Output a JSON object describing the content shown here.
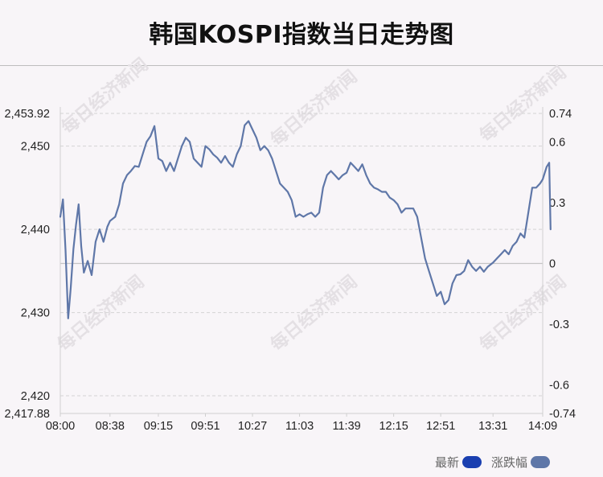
{
  "title": "韩国KOSPI指数当日走势图",
  "watermark_text": "每日经济新闻",
  "legend": [
    {
      "label": "最新",
      "color": "#1a3fb0"
    },
    {
      "label": "涨跌幅",
      "color": "#5f77a8"
    }
  ],
  "chart_data": {
    "type": "line",
    "line_color": "#5f77a8",
    "x_ticks": [
      "08:00",
      "08:38",
      "09:15",
      "09:51",
      "10:27",
      "11:03",
      "11:39",
      "12:15",
      "12:51",
      "13:31",
      "14:09"
    ],
    "x_range": [
      "08:00",
      "14:09"
    ],
    "y_left_ticks": [
      "2,453.92",
      "2,450",
      "2,440",
      "2,430",
      "2,420",
      "2,417.88"
    ],
    "y_left_range": [
      2417.88,
      2453.92
    ],
    "y_right_ticks": [
      "0.74",
      "0.6",
      "0.3",
      "0",
      "-0.3",
      "-0.6",
      "-0.74"
    ],
    "y_right_range": [
      -0.74,
      0.74
    ],
    "baseline": 2435.9,
    "grid": true,
    "series": [
      {
        "values": [
          [
            "08:00",
            2441.5
          ],
          [
            "08:02",
            2443.6
          ],
          [
            "08:04",
            2437.5
          ],
          [
            "08:06",
            2429.3
          ],
          [
            "08:08",
            2433.0
          ],
          [
            "08:10",
            2437.6
          ],
          [
            "08:12",
            2440.5
          ],
          [
            "08:14",
            2443.0
          ],
          [
            "08:16",
            2438.0
          ],
          [
            "08:18",
            2434.8
          ],
          [
            "08:21",
            2436.2
          ],
          [
            "08:24",
            2434.5
          ],
          [
            "08:27",
            2438.5
          ],
          [
            "08:30",
            2440.0
          ],
          [
            "08:33",
            2438.5
          ],
          [
            "08:36",
            2440.3
          ],
          [
            "08:38",
            2441.0
          ],
          [
            "08:42",
            2441.5
          ],
          [
            "08:45",
            2443.0
          ],
          [
            "08:48",
            2445.5
          ],
          [
            "08:51",
            2446.5
          ],
          [
            "08:54",
            2447.0
          ],
          [
            "08:57",
            2447.6
          ],
          [
            "09:00",
            2447.5
          ],
          [
            "09:03",
            2449.0
          ],
          [
            "09:06",
            2450.5
          ],
          [
            "09:09",
            2451.2
          ],
          [
            "09:12",
            2452.4
          ],
          [
            "09:15",
            2448.5
          ],
          [
            "09:18",
            2448.2
          ],
          [
            "09:21",
            2447.0
          ],
          [
            "09:24",
            2448.0
          ],
          [
            "09:27",
            2447.0
          ],
          [
            "09:30",
            2448.5
          ],
          [
            "09:33",
            2450.0
          ],
          [
            "09:36",
            2451.0
          ],
          [
            "09:39",
            2450.5
          ],
          [
            "09:42",
            2448.5
          ],
          [
            "09:45",
            2448.0
          ],
          [
            "09:48",
            2447.5
          ],
          [
            "09:51",
            2450.0
          ],
          [
            "09:54",
            2449.6
          ],
          [
            "09:57",
            2449.0
          ],
          [
            "10:00",
            2448.6
          ],
          [
            "10:03",
            2448.0
          ],
          [
            "10:06",
            2448.8
          ],
          [
            "10:09",
            2448.0
          ],
          [
            "10:12",
            2447.5
          ],
          [
            "10:15",
            2449.0
          ],
          [
            "10:18",
            2450.0
          ],
          [
            "10:21",
            2452.5
          ],
          [
            "10:24",
            2453.0
          ],
          [
            "10:27",
            2452.0
          ],
          [
            "10:30",
            2451.0
          ],
          [
            "10:33",
            2449.5
          ],
          [
            "10:36",
            2450.0
          ],
          [
            "10:39",
            2449.5
          ],
          [
            "10:42",
            2448.5
          ],
          [
            "10:45",
            2447.0
          ],
          [
            "10:48",
            2445.5
          ],
          [
            "10:51",
            2445.0
          ],
          [
            "10:54",
            2444.5
          ],
          [
            "10:57",
            2443.5
          ],
          [
            "11:00",
            2441.5
          ],
          [
            "11:03",
            2441.8
          ],
          [
            "11:06",
            2441.5
          ],
          [
            "11:09",
            2441.8
          ],
          [
            "11:12",
            2442.0
          ],
          [
            "11:15",
            2441.5
          ],
          [
            "11:18",
            2442.0
          ],
          [
            "11:21",
            2445.0
          ],
          [
            "11:24",
            2446.5
          ],
          [
            "11:27",
            2447.0
          ],
          [
            "11:30",
            2446.5
          ],
          [
            "11:33",
            2446.0
          ],
          [
            "11:36",
            2446.5
          ],
          [
            "11:39",
            2446.8
          ],
          [
            "11:42",
            2448.0
          ],
          [
            "11:45",
            2447.5
          ],
          [
            "11:48",
            2447.0
          ],
          [
            "11:51",
            2447.8
          ],
          [
            "11:54",
            2446.5
          ],
          [
            "11:57",
            2445.5
          ],
          [
            "12:00",
            2445.0
          ],
          [
            "12:03",
            2444.8
          ],
          [
            "12:06",
            2444.5
          ],
          [
            "12:09",
            2444.5
          ],
          [
            "12:12",
            2443.8
          ],
          [
            "12:15",
            2443.5
          ],
          [
            "12:18",
            2443.0
          ],
          [
            "12:21",
            2442.0
          ],
          [
            "12:24",
            2442.5
          ],
          [
            "12:27",
            2442.5
          ],
          [
            "12:30",
            2442.5
          ],
          [
            "12:33",
            2441.5
          ],
          [
            "12:36",
            2439.0
          ],
          [
            "12:39",
            2436.5
          ],
          [
            "12:42",
            2435.0
          ],
          [
            "12:45",
            2433.5
          ],
          [
            "12:48",
            2432.0
          ],
          [
            "12:51",
            2432.5
          ],
          [
            "12:54",
            2431.0
          ],
          [
            "12:57",
            2431.5
          ],
          [
            "13:00",
            2433.5
          ],
          [
            "13:03",
            2434.5
          ],
          [
            "13:06",
            2434.6
          ],
          [
            "13:09",
            2435.0
          ],
          [
            "13:12",
            2436.3
          ],
          [
            "13:15",
            2435.5
          ],
          [
            "13:18",
            2435.0
          ],
          [
            "13:21",
            2435.5
          ],
          [
            "13:24",
            2434.9
          ],
          [
            "13:27",
            2435.5
          ],
          [
            "13:31",
            2436.0
          ],
          [
            "13:34",
            2436.5
          ],
          [
            "13:37",
            2437.0
          ],
          [
            "13:40",
            2437.5
          ],
          [
            "13:43",
            2437.0
          ],
          [
            "13:46",
            2438.0
          ],
          [
            "13:49",
            2438.5
          ],
          [
            "13:52",
            2439.5
          ],
          [
            "13:55",
            2439.0
          ],
          [
            "13:58",
            2442.0
          ],
          [
            "14:01",
            2445.0
          ],
          [
            "14:04",
            2445.0
          ],
          [
            "14:07",
            2445.5
          ],
          [
            "14:09",
            2446.0
          ],
          [
            "14:12",
            2447.5
          ],
          [
            "14:14",
            2448.0
          ],
          [
            "14:15",
            2440.0
          ]
        ]
      }
    ]
  }
}
